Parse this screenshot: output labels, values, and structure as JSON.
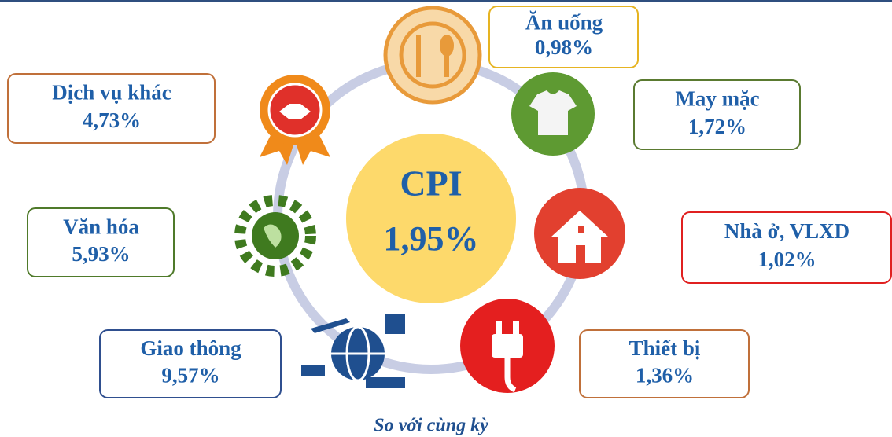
{
  "center": {
    "label": "CPI",
    "value": "1,95%"
  },
  "nodes": [
    {
      "label": "Ăn uống",
      "value": "0,98%"
    },
    {
      "label": "May mặc",
      "value": "1,72%"
    },
    {
      "label": "Nhà ở, VLXD",
      "value": "1,02%"
    },
    {
      "label": "Thiết bị",
      "value": "1,36%"
    },
    {
      "label": "Giao thông",
      "value": "9,57%"
    },
    {
      "label": "Văn hóa",
      "value": "5,93%"
    },
    {
      "label": "Dịch vụ khác",
      "value": "4,73%"
    }
  ],
  "footer": "So với cùng kỳ"
}
